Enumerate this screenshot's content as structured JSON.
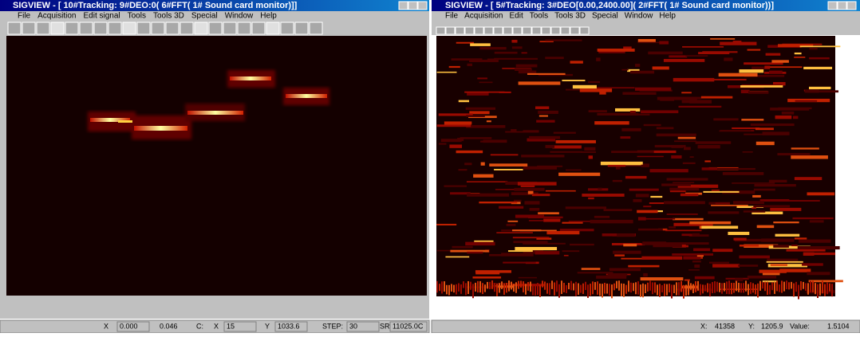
{
  "left_window": {
    "title": "SIGVIEW - [ 10#Tracking: 9#DEO:0( 6#FFT( 1# Sound card monitor)]]",
    "menu": [
      "File",
      "Acquisition",
      "Edit signal",
      "Tools",
      "Tools 3D",
      "Special",
      "Window",
      "Help"
    ],
    "status": [
      "X",
      "0.000",
      "0.046",
      "C:",
      "X",
      "15",
      "Y",
      "1033.6",
      "STEP:",
      "30",
      "SR:",
      "11025.0C"
    ]
  },
  "right_window": {
    "title": "SIGVIEW - [ 5#Tracking: 3#DEO[0.00,2400.00]( 2#FFT( 1# Sound card monitor))]",
    "menu": [
      "File",
      "Acquisition",
      "Edit",
      "Tools",
      "Tools 3D",
      "Special",
      "Window",
      "Help"
    ],
    "status": [
      "X:",
      "41358",
      "Y:",
      "1205.9",
      "Value:",
      "1.5104"
    ]
  }
}
